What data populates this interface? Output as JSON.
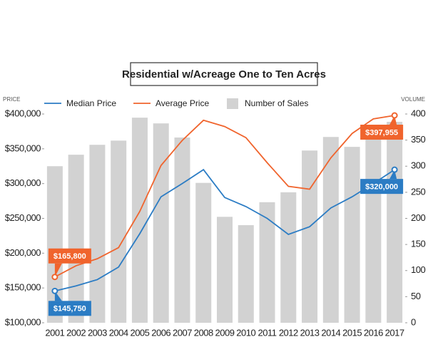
{
  "chart_data": {
    "type": "combo",
    "title": "Residential w/Acreage One to Ten Acres",
    "y_label": "PRICE",
    "y2_label": "VOLUME",
    "legend": "top",
    "categories": [
      "2001",
      "2002",
      "2003",
      "2004",
      "2005",
      "2006",
      "2007",
      "2008",
      "2009",
      "2010",
      "2011",
      "2012",
      "2013",
      "2014",
      "2015",
      "2016",
      "2017"
    ],
    "series": [
      {
        "name": "Median Price",
        "type": "line",
        "color": "#2b7cc4",
        "values": [
          145750,
          153000,
          162000,
          180000,
          228000,
          281000,
          300000,
          320000,
          280000,
          267000,
          250000,
          227000,
          238000,
          265000,
          281000,
          300000,
          320000
        ],
        "value_labels": [
          "$145,750",
          null,
          null,
          null,
          null,
          null,
          null,
          null,
          null,
          null,
          null,
          null,
          null,
          null,
          null,
          null,
          "$320,000"
        ]
      },
      {
        "name": "Average Price",
        "type": "line",
        "color": "#f0642d",
        "values": [
          165800,
          182000,
          192000,
          208000,
          260000,
          326000,
          362000,
          391000,
          382000,
          366000,
          330000,
          296000,
          292000,
          337000,
          372000,
          393000,
          397955
        ],
        "value_labels": [
          "$165,800",
          null,
          null,
          null,
          null,
          null,
          null,
          null,
          null,
          null,
          null,
          null,
          null,
          null,
          null,
          null,
          "$397,955"
        ]
      },
      {
        "name": "Number of Sales",
        "type": "bar",
        "color": "#d2d2d2",
        "axis": "y2",
        "values": [
          300,
          322,
          341,
          349,
          393,
          382,
          355,
          268,
          203,
          187,
          231,
          250,
          330,
          356,
          337,
          370,
          385
        ]
      }
    ],
    "ylim": [
      100000,
      400000
    ],
    "yticks": [
      {
        "value": 100000,
        "label": "$100,000"
      },
      {
        "value": 150000,
        "label": "$150,000"
      },
      {
        "value": 200000,
        "label": "$200,000"
      },
      {
        "value": 250000,
        "label": "$250,000"
      },
      {
        "value": 300000,
        "label": "$300,000"
      },
      {
        "value": 350000,
        "label": "$350,000"
      },
      {
        "value": 400000,
        "label": "$400,000"
      }
    ],
    "y2lim": [
      0,
      400
    ],
    "y2ticks": [
      0,
      50,
      100,
      150,
      200,
      250,
      300,
      350,
      400
    ]
  }
}
